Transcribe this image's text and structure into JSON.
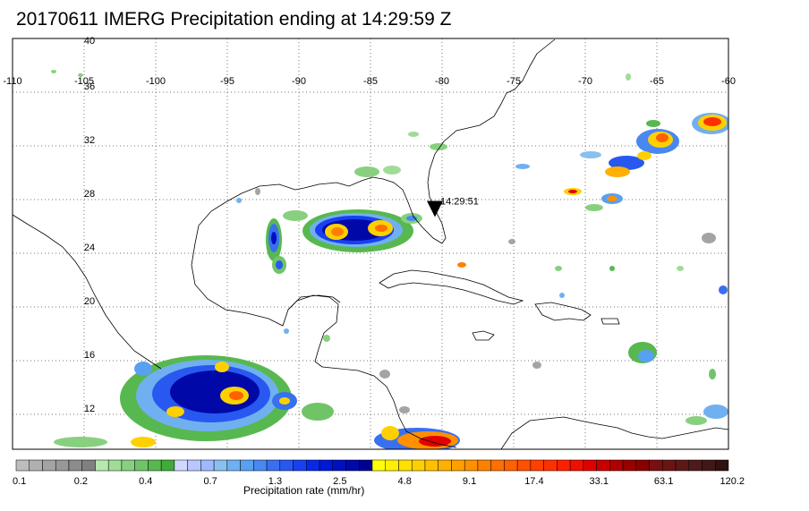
{
  "title": "20170611 IMERG Precipitation ending at 14:29:59 Z",
  "lon_labels": [
    "-110",
    "-105",
    "-100",
    "-95",
    "-90",
    "-85",
    "-80",
    "-75",
    "-70",
    "-65",
    "-60"
  ],
  "lat_labels": [
    "40",
    "36",
    "32",
    "28",
    "24",
    "20",
    "16",
    "12"
  ],
  "marker": {
    "label": "14:29:51",
    "lon": -80.5,
    "lat": 26.7
  },
  "colorbar": {
    "title": "Precipitation rate (mm/hr)",
    "tick_labels": [
      "0.1",
      "0.2",
      "0.4",
      "0.7",
      "1.3",
      "2.5",
      "4.8",
      "9.1",
      "17.4",
      "33.1",
      "63.1",
      "120.2"
    ],
    "colors": [
      "#bdbdbd",
      "#b0b0b0",
      "#a4a4a4",
      "#989898",
      "#8c8c8c",
      "#808080",
      "#b8e8b0",
      "#a0dc98",
      "#88d080",
      "#70c468",
      "#58b850",
      "#40ac38",
      "#d0d8ff",
      "#b8c8ff",
      "#a0b8ff",
      "#88c0f0",
      "#70b0f0",
      "#58a0f0",
      "#4888f0",
      "#3870f0",
      "#2858f0",
      "#1840f0",
      "#0828e8",
      "#0018d8",
      "#0010c0",
      "#0008a8",
      "#000090",
      "#ffff00",
      "#fff000",
      "#ffe000",
      "#ffd000",
      "#ffc000",
      "#ffb000",
      "#ffa000",
      "#ff9000",
      "#ff8000",
      "#ff7000",
      "#ff6000",
      "#ff5000",
      "#ff4000",
      "#ff3000",
      "#ff2000",
      "#f01000",
      "#e00000",
      "#c80000",
      "#b00000",
      "#980000",
      "#880000",
      "#781010",
      "#6a1414",
      "#5c1818",
      "#4e1a1a",
      "#401818",
      "#301010"
    ]
  }
}
